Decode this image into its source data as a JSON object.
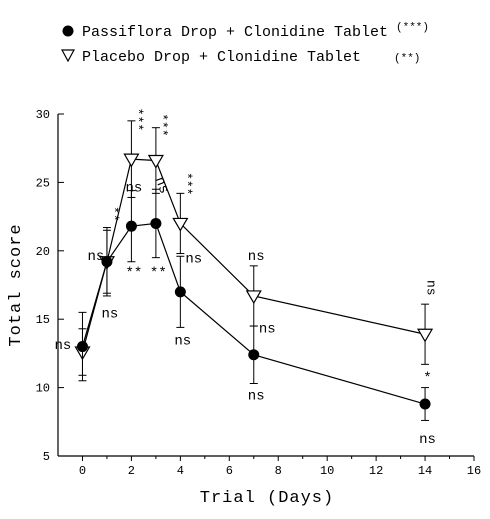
{
  "chart_data": {
    "type": "line",
    "xlabel": "Trial (Days)",
    "ylabel": "Total score",
    "xlim": [
      -1,
      16
    ],
    "ylim": [
      5,
      30
    ],
    "xticks": [
      0,
      2,
      4,
      6,
      8,
      10,
      12,
      14,
      16
    ],
    "yticks": [
      5,
      10,
      15,
      20,
      25,
      30
    ],
    "legend_position": "top-left",
    "series": [
      {
        "name": "Passiflora Drop + Clonidine Tablet",
        "significance": "(***)",
        "marker": "filled-circle",
        "color": "#000000",
        "x": [
          0,
          1,
          2,
          3,
          4,
          7,
          14
        ],
        "y": [
          13.0,
          19.2,
          21.8,
          22.0,
          17.0,
          12.4,
          8.8
        ],
        "err": [
          2.5,
          2.3,
          2.6,
          2.5,
          2.6,
          2.1,
          1.2
        ]
      },
      {
        "name": "Placebo Drop + Clonidine Tablet",
        "significance": "(**)",
        "marker": "open-triangle-down",
        "color": "#000000",
        "x": [
          0,
          1,
          2,
          3,
          4,
          7,
          14
        ],
        "y": [
          12.6,
          19.2,
          26.7,
          26.6,
          22.0,
          16.7,
          13.9
        ],
        "err": [
          1.7,
          2.5,
          2.8,
          2.4,
          2.2,
          2.2,
          2.2
        ]
      }
    ],
    "annotations": [
      {
        "text": "ns",
        "x": -0.8,
        "y": 13.2
      },
      {
        "text": "ns",
        "x": 0.55,
        "y": 19.7
      },
      {
        "text": "**",
        "x": 1.12,
        "y": 22.7,
        "vertical": true
      },
      {
        "text": "ns",
        "x": 1.12,
        "y": 15.5
      },
      {
        "text": "***",
        "x": 2.1,
        "y": 29.6,
        "vertical": true
      },
      {
        "text": "ns",
        "x": 2.1,
        "y": 24.7
      },
      {
        "text": "**",
        "x": 2.1,
        "y": 18.5
      },
      {
        "text": "***",
        "x": 3.1,
        "y": 29.2,
        "vertical": true
      },
      {
        "text": "ns",
        "x": 3.1,
        "y": 24.7,
        "rotated": true
      },
      {
        "text": "**",
        "x": 3.1,
        "y": 18.5
      },
      {
        "text": "***",
        "x": 4.1,
        "y": 24.9,
        "vertical": true
      },
      {
        "text": "ns",
        "x": 4.55,
        "y": 19.5
      },
      {
        "text": "ns",
        "x": 4.1,
        "y": 13.5
      },
      {
        "text": "ns",
        "x": 7.1,
        "y": 19.7
      },
      {
        "text": "ns",
        "x": 7.55,
        "y": 14.4
      },
      {
        "text": "ns",
        "x": 7.1,
        "y": 9.5
      },
      {
        "text": "ns",
        "x": 14.1,
        "y": 17.3,
        "vertical": true
      },
      {
        "text": "*",
        "x": 14.1,
        "y": 10.8
      },
      {
        "text": "ns",
        "x": 14.1,
        "y": 6.3
      }
    ]
  }
}
